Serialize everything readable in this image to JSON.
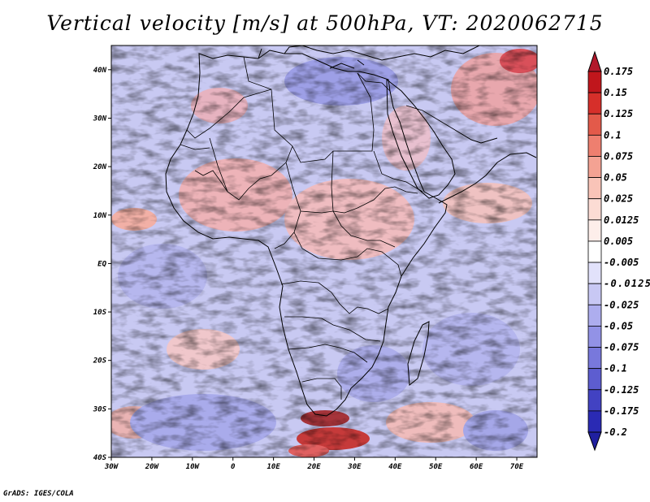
{
  "title": "Vertical velocity [m/s] at 500hPa, VT: 2020062715",
  "credit": "GrADS: IGES/COLA",
  "map": {
    "lon_range": [
      -30,
      75
    ],
    "lat_range": [
      -40,
      45
    ],
    "lat_ticks": [
      {
        "value": 40,
        "label": "40N"
      },
      {
        "value": 30,
        "label": "30N"
      },
      {
        "value": 20,
        "label": "20N"
      },
      {
        "value": 10,
        "label": "10N"
      },
      {
        "value": 0,
        "label": "EQ"
      },
      {
        "value": -10,
        "label": "10S"
      },
      {
        "value": -20,
        "label": "20S"
      },
      {
        "value": -30,
        "label": "30S"
      },
      {
        "value": -40,
        "label": "40S"
      }
    ],
    "lon_ticks": [
      {
        "value": -30,
        "label": "30W"
      },
      {
        "value": -20,
        "label": "20W"
      },
      {
        "value": -10,
        "label": "10W"
      },
      {
        "value": 0,
        "label": "0"
      },
      {
        "value": 10,
        "label": "10E"
      },
      {
        "value": 20,
        "label": "20E"
      },
      {
        "value": 30,
        "label": "30E"
      },
      {
        "value": 40,
        "label": "40E"
      },
      {
        "value": 50,
        "label": "50E"
      },
      {
        "value": 60,
        "label": "60E"
      },
      {
        "value": 70,
        "label": "70E"
      }
    ]
  },
  "colorbar": {
    "levels": [
      {
        "label": "0.175",
        "color": "#a50f15"
      },
      {
        "label": "0.15",
        "color": "#c0161c"
      },
      {
        "label": "0.125",
        "color": "#d62f2a"
      },
      {
        "label": "0.1",
        "color": "#e35a4a"
      },
      {
        "label": "0.075",
        "color": "#ee7f6f"
      },
      {
        "label": "0.05",
        "color": "#f4a293"
      },
      {
        "label": "0.025",
        "color": "#f9c4b8"
      },
      {
        "label": "0.0125",
        "color": "#fcdcd4"
      },
      {
        "label": "0.005",
        "color": "#fdeeea"
      },
      {
        "label": "-0.005",
        "color": "#ffffff"
      },
      {
        "label": "-0.0125",
        "color": "#e2e2fb"
      },
      {
        "label": "-0.025",
        "color": "#c8c8f4"
      },
      {
        "label": "-0.05",
        "color": "#adadee"
      },
      {
        "label": "-0.075",
        "color": "#9292e6"
      },
      {
        "label": "-0.1",
        "color": "#7878dc"
      },
      {
        "label": "-0.125",
        "color": "#5d5dd0"
      },
      {
        "label": "-0.175",
        "color": "#4242c2"
      },
      {
        "label": "-0.2",
        "color": "#2a2ab4"
      }
    ],
    "top_color": "#b2182b",
    "bottom_color": "#2020a0"
  }
}
